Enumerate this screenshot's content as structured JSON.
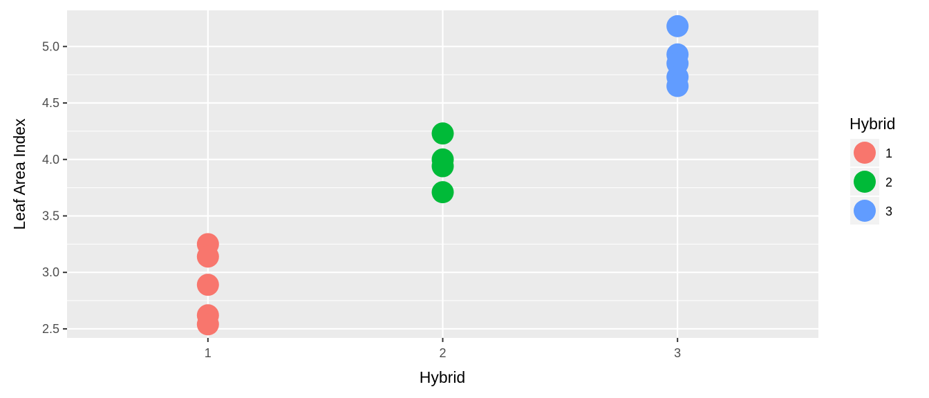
{
  "chart_data": {
    "type": "scatter",
    "xlabel": "Hybrid",
    "ylabel": "Leaf Area Index",
    "categories": [
      "1",
      "2",
      "3"
    ],
    "ylim": [
      2.42,
      5.32
    ],
    "yticks": [
      "2.5",
      "3.0",
      "3.5",
      "4.0",
      "4.5",
      "5.0"
    ],
    "grid": true,
    "legend": {
      "title": "Hybrid",
      "position": "right",
      "entries": [
        "1",
        "2",
        "3"
      ]
    },
    "series": [
      {
        "name": "1",
        "color": "#F8766D",
        "x": [
          "1",
          "1",
          "1",
          "1",
          "1"
        ],
        "values": [
          3.25,
          3.14,
          2.89,
          2.62,
          2.54
        ]
      },
      {
        "name": "2",
        "color": "#00BA38",
        "x": [
          "2",
          "2",
          "2",
          "2"
        ],
        "values": [
          4.23,
          4.0,
          3.94,
          3.71
        ]
      },
      {
        "name": "3",
        "color": "#619CFF",
        "x": [
          "3",
          "3",
          "3",
          "3",
          "3"
        ],
        "values": [
          5.18,
          4.93,
          4.85,
          4.73,
          4.65
        ]
      }
    ]
  }
}
